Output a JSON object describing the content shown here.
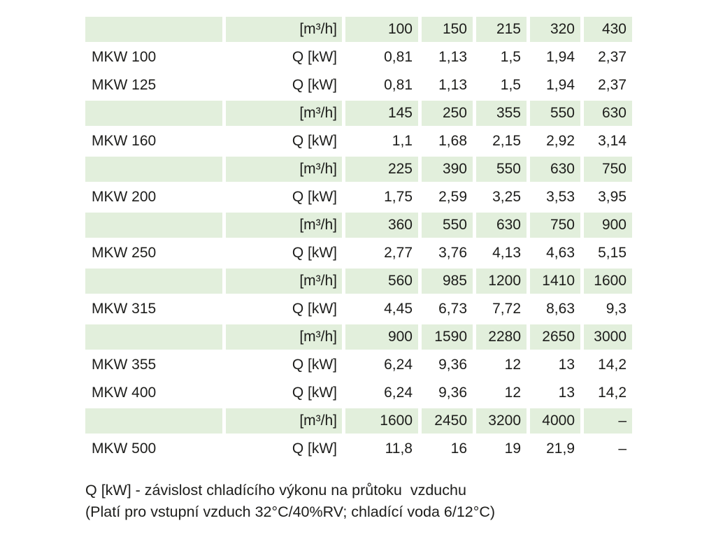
{
  "colors": {
    "row_highlight": "#e2efdc",
    "text": "#1d1d1b",
    "background": "#ffffff"
  },
  "table": {
    "unit_airflow_label": "[m³/h]",
    "unit_power_label": "Q [kW]",
    "rows": [
      {
        "type": "airflow",
        "model": "",
        "unit": "[m³/h]",
        "values": [
          "100",
          "150",
          "215",
          "320",
          "430"
        ]
      },
      {
        "type": "power",
        "model": "MKW 100",
        "unit": "Q [kW]",
        "values": [
          "0,81",
          "1,13",
          "1,5",
          "1,94",
          "2,37"
        ]
      },
      {
        "type": "power",
        "model": "MKW 125",
        "unit": "Q [kW]",
        "values": [
          "0,81",
          "1,13",
          "1,5",
          "1,94",
          "2,37"
        ]
      },
      {
        "type": "airflow",
        "model": "",
        "unit": "[m³/h]",
        "values": [
          "145",
          "250",
          "355",
          "550",
          "630"
        ]
      },
      {
        "type": "power",
        "model": "MKW 160",
        "unit": "Q [kW]",
        "values": [
          "1,1",
          "1,68",
          "2,15",
          "2,92",
          "3,14"
        ]
      },
      {
        "type": "airflow",
        "model": "",
        "unit": "[m³/h]",
        "values": [
          "225",
          "390",
          "550",
          "630",
          "750"
        ]
      },
      {
        "type": "power",
        "model": "MKW 200",
        "unit": "Q [kW]",
        "values": [
          "1,75",
          "2,59",
          "3,25",
          "3,53",
          "3,95"
        ]
      },
      {
        "type": "airflow",
        "model": "",
        "unit": "[m³/h]",
        "values": [
          "360",
          "550",
          "630",
          "750",
          "900"
        ]
      },
      {
        "type": "power",
        "model": "MKW 250",
        "unit": "Q [kW]",
        "values": [
          "2,77",
          "3,76",
          "4,13",
          "4,63",
          "5,15"
        ]
      },
      {
        "type": "airflow",
        "model": "",
        "unit": "[m³/h]",
        "values": [
          "560",
          "985",
          "1200",
          "1410",
          "1600"
        ]
      },
      {
        "type": "power",
        "model": "MKW 315",
        "unit": "Q [kW]",
        "values": [
          "4,45",
          "6,73",
          "7,72",
          "8,63",
          "9,3"
        ]
      },
      {
        "type": "airflow",
        "model": "",
        "unit": "[m³/h]",
        "values": [
          "900",
          "1590",
          "2280",
          "2650",
          "3000"
        ]
      },
      {
        "type": "power",
        "model": "MKW 355",
        "unit": "Q [kW]",
        "values": [
          "6,24",
          "9,36",
          "12",
          "13",
          "14,2"
        ]
      },
      {
        "type": "power",
        "model": "MKW 400",
        "unit": "Q [kW]",
        "values": [
          "6,24",
          "9,36",
          "12",
          "13",
          "14,2"
        ]
      },
      {
        "type": "airflow",
        "model": "",
        "unit": "[m³/h]",
        "values": [
          "1600",
          "2450",
          "3200",
          "4000",
          "–"
        ]
      },
      {
        "type": "power",
        "model": "MKW 500",
        "unit": "Q [kW]",
        "values": [
          "11,8",
          "16",
          "19",
          "21,9",
          "–"
        ]
      }
    ]
  },
  "footer": {
    "line1": "Q [kW] - závislost chladícího výkonu na průtoku  vzduchu",
    "line2": "(Platí pro vstupní vzduch 32°C/40%RV; chladící voda 6/12°C)"
  }
}
